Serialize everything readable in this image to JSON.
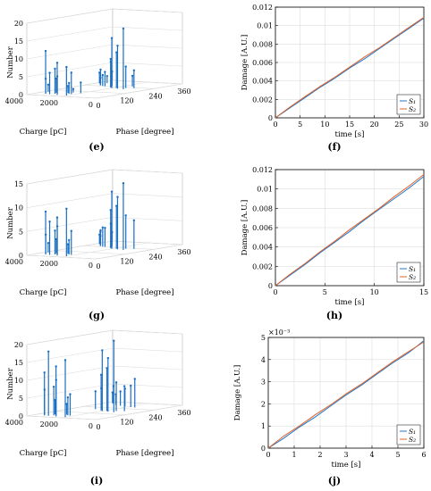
{
  "figure": {
    "panel_labels": [
      "(e)",
      "(f)",
      "(g)",
      "(h)",
      "(i)",
      "(j)"
    ]
  },
  "colors": {
    "s1": "#1f77c8",
    "s2": "#e0602a",
    "stem": "#1a6fc4",
    "grid": "#dddddd"
  },
  "chart_data": [
    {
      "type": "bar3d",
      "panel": "(e)",
      "zlabel": "Number",
      "xlabel": "Charge [pC]",
      "ylabel": "Phase [degree]",
      "zticks": [
        "0",
        "5",
        "10",
        "15",
        "20"
      ],
      "zlim": [
        0,
        20
      ],
      "charge_ticks": [
        "4000",
        "2000",
        "0"
      ],
      "charge_lim": [
        0,
        4000
      ],
      "phase_ticks": [
        "0",
        "120",
        "240",
        "360"
      ],
      "phase_lim": [
        0,
        360
      ],
      "stems": [
        [
          2000,
          20,
          8
        ],
        [
          2600,
          25,
          9
        ],
        [
          3100,
          30,
          6
        ],
        [
          3400,
          35,
          12
        ],
        [
          2800,
          40,
          5
        ],
        [
          3000,
          45,
          7
        ],
        [
          3600,
          50,
          4
        ],
        [
          2200,
          55,
          6
        ],
        [
          2400,
          60,
          3
        ],
        [
          3200,
          65,
          4
        ],
        [
          2600,
          70,
          2
        ],
        [
          3800,
          75,
          2
        ],
        [
          2000,
          80,
          3
        ],
        [
          2500,
          85,
          1
        ],
        [
          1200,
          200,
          17
        ],
        [
          1600,
          205,
          12
        ],
        [
          2000,
          210,
          14
        ],
        [
          1800,
          215,
          10
        ],
        [
          2200,
          220,
          8
        ],
        [
          1400,
          225,
          6
        ],
        [
          1000,
          230,
          5
        ],
        [
          2400,
          235,
          7
        ],
        [
          2800,
          240,
          4
        ],
        [
          3000,
          245,
          3
        ],
        [
          3200,
          250,
          2
        ],
        [
          2600,
          255,
          4
        ],
        [
          1500,
          260,
          3
        ],
        [
          3400,
          265,
          2
        ],
        [
          3600,
          280,
          4
        ],
        [
          3800,
          290,
          3
        ],
        [
          3500,
          300,
          2
        ]
      ]
    },
    {
      "type": "line",
      "panel": "(f)",
      "xlabel": "time [s]",
      "ylabel": "Damage [A.U.]",
      "xlim": [
        0,
        30
      ],
      "ylim": [
        0,
        0.012
      ],
      "xticks": [
        "0",
        "5",
        "10",
        "15",
        "20",
        "25",
        "30"
      ],
      "yticks": [
        "0",
        "0.002",
        "0.004",
        "0.006",
        "0.008",
        "0.01",
        "0.012"
      ],
      "legend": {
        "position": "bottom-right",
        "entries": [
          "S₁",
          "S₂"
        ]
      },
      "series": [
        {
          "name": "S₁",
          "x": [
            0,
            3,
            6,
            9,
            12,
            15,
            18,
            21,
            24,
            27,
            30
          ],
          "y": [
            0,
            0.0011,
            0.0022,
            0.0033,
            0.0043,
            0.0054,
            0.0064,
            0.0075,
            0.0086,
            0.0097,
            0.0108
          ]
        },
        {
          "name": "S₂",
          "x": [
            0,
            3,
            6,
            9,
            12,
            15,
            18,
            21,
            24,
            27,
            30
          ],
          "y": [
            0,
            0.0012,
            0.0023,
            0.0034,
            0.0044,
            0.0055,
            0.0066,
            0.0076,
            0.0087,
            0.0098,
            0.0109
          ]
        }
      ]
    },
    {
      "type": "bar3d",
      "panel": "(g)",
      "zlabel": "Number",
      "xlabel": "Charge [pC]",
      "ylabel": "Phase [degree]",
      "zticks": [
        "0",
        "5",
        "10",
        "15"
      ],
      "zlim": [
        0,
        15
      ],
      "charge_ticks": [
        "4000",
        "2000",
        "0"
      ],
      "charge_lim": [
        0,
        4000
      ],
      "phase_ticks": [
        "0",
        "120",
        "240",
        "360"
      ],
      "phase_lim": [
        0,
        360
      ],
      "stems": [
        [
          2000,
          20,
          10
        ],
        [
          2600,
          25,
          8
        ],
        [
          3100,
          30,
          7
        ],
        [
          3400,
          35,
          9
        ],
        [
          2800,
          40,
          6
        ],
        [
          3000,
          45,
          5
        ],
        [
          3600,
          50,
          4
        ],
        [
          2200,
          55,
          5
        ],
        [
          2400,
          60,
          3
        ],
        [
          3200,
          65,
          3
        ],
        [
          2600,
          70,
          2
        ],
        [
          3800,
          75,
          2
        ],
        [
          1200,
          200,
          14
        ],
        [
          1600,
          205,
          11
        ],
        [
          2000,
          210,
          12
        ],
        [
          1800,
          215,
          9
        ],
        [
          2200,
          220,
          8
        ],
        [
          1400,
          225,
          7
        ],
        [
          1000,
          230,
          6
        ],
        [
          2400,
          235,
          5
        ],
        [
          2800,
          240,
          4
        ],
        [
          3000,
          245,
          4
        ],
        [
          3200,
          250,
          3
        ],
        [
          2600,
          255,
          3
        ],
        [
          3400,
          265,
          2
        ],
        [
          3600,
          280,
          3
        ],
        [
          3800,
          290,
          2
        ]
      ]
    },
    {
      "type": "line",
      "panel": "(h)",
      "xlabel": "time [s]",
      "ylabel": "Damage [A.U.]",
      "xlim": [
        0,
        15
      ],
      "ylim": [
        0,
        0.012
      ],
      "xticks": [
        "0",
        "5",
        "10",
        "15"
      ],
      "yticks": [
        "0",
        "0.002",
        "0.004",
        "0.006",
        "0.008",
        "0.01",
        "0.012"
      ],
      "legend": {
        "position": "bottom-right",
        "entries": [
          "S₁",
          "S₂"
        ]
      },
      "series": [
        {
          "name": "S₁",
          "x": [
            0,
            1.5,
            3,
            4.5,
            6,
            7.5,
            9,
            10.5,
            12,
            13.5,
            15
          ],
          "y": [
            0,
            0.0011,
            0.0022,
            0.0034,
            0.0045,
            0.0056,
            0.0068,
            0.0079,
            0.009,
            0.0101,
            0.0113
          ]
        },
        {
          "name": "S₂",
          "x": [
            0,
            1.5,
            3,
            4.5,
            6,
            7.5,
            9,
            10.5,
            12,
            13.5,
            15
          ],
          "y": [
            0,
            0.0012,
            0.0023,
            0.0035,
            0.0046,
            0.0058,
            0.0069,
            0.008,
            0.0092,
            0.0103,
            0.0115
          ]
        }
      ]
    },
    {
      "type": "bar3d",
      "panel": "(i)",
      "zlabel": "Number",
      "xlabel": "Charge [pC]",
      "ylabel": "Phase [degree]",
      "zticks": [
        "0",
        "5",
        "10",
        "15",
        "20"
      ],
      "zlim": [
        0,
        20
      ],
      "charge_ticks": [
        "4000",
        "2000",
        "0"
      ],
      "charge_lim": [
        0,
        4000
      ],
      "phase_ticks": [
        "0",
        "120",
        "240",
        "360"
      ],
      "phase_lim": [
        0,
        360
      ],
      "stems": [
        [
          2000,
          15,
          16
        ],
        [
          2600,
          20,
          14
        ],
        [
          3100,
          25,
          18
        ],
        [
          3400,
          30,
          12
        ],
        [
          2800,
          35,
          10
        ],
        [
          3000,
          40,
          8
        ],
        [
          3600,
          45,
          7
        ],
        [
          2200,
          50,
          6
        ],
        [
          2400,
          55,
          5
        ],
        [
          3200,
          60,
          4
        ],
        [
          2600,
          65,
          3
        ],
        [
          1200,
          160,
          20
        ],
        [
          1600,
          165,
          15
        ],
        [
          2000,
          170,
          17
        ],
        [
          1800,
          175,
          12
        ],
        [
          2200,
          180,
          10
        ],
        [
          1400,
          185,
          8
        ],
        [
          1000,
          190,
          7
        ],
        [
          2400,
          195,
          6
        ],
        [
          2800,
          200,
          5
        ],
        [
          1500,
          270,
          8
        ],
        [
          1800,
          275,
          6
        ],
        [
          2200,
          280,
          5
        ],
        [
          2600,
          290,
          4
        ],
        [
          3000,
          300,
          3
        ],
        [
          3400,
          320,
          5
        ],
        [
          3600,
          330,
          3
        ]
      ]
    },
    {
      "type": "line",
      "panel": "(j)",
      "xlabel": "time [s]",
      "ylabel": "Damage [A.U.]",
      "xlim": [
        0,
        6
      ],
      "ylim": [
        0,
        5
      ],
      "yscale_label": "×10⁻³",
      "xticks": [
        "0",
        "1",
        "2",
        "3",
        "4",
        "5",
        "6"
      ],
      "yticks": [
        "0",
        "1",
        "2",
        "3",
        "4",
        "5"
      ],
      "legend": {
        "position": "bottom-right",
        "entries": [
          "S₁",
          "S₂"
        ]
      },
      "series": [
        {
          "name": "S₁",
          "x": [
            0,
            0.6,
            1.2,
            1.8,
            2.4,
            3,
            3.6,
            4.2,
            4.8,
            5.4,
            6
          ],
          "y": [
            0,
            0.45,
            0.95,
            1.4,
            1.9,
            2.4,
            2.85,
            3.35,
            3.85,
            4.3,
            4.85
          ]
        },
        {
          "name": "S₂",
          "x": [
            0,
            0.6,
            1.2,
            1.8,
            2.4,
            3,
            3.6,
            4.2,
            4.8,
            5.4,
            6
          ],
          "y": [
            0,
            0.55,
            1.0,
            1.5,
            1.95,
            2.45,
            2.9,
            3.4,
            3.9,
            4.35,
            4.8
          ]
        }
      ]
    }
  ]
}
